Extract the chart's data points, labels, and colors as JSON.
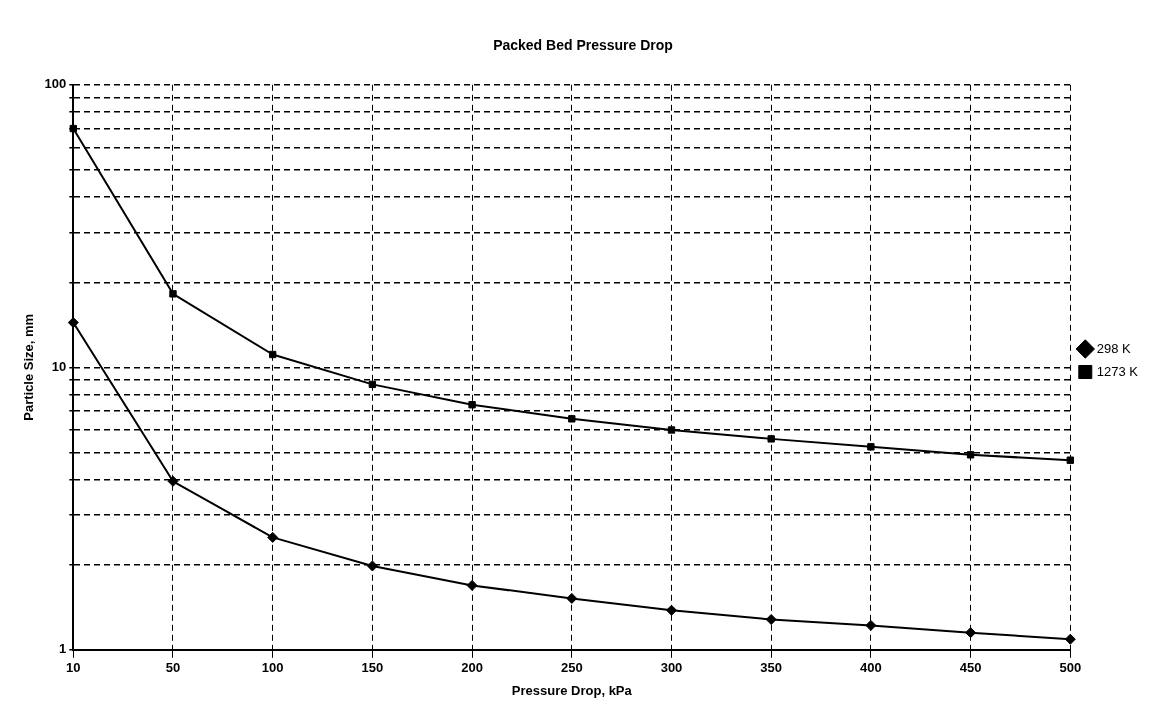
{
  "chart_data": {
    "type": "line",
    "title": "Packed Bed Pressure Drop",
    "xlabel": "Pressure Drop, kPa",
    "ylabel": "Particle Size, mm",
    "categories": [
      "10",
      "50",
      "100",
      "150",
      "200",
      "250",
      "300",
      "350",
      "400",
      "450",
      "500"
    ],
    "series": [
      {
        "name": "298 K",
        "color": "#000000",
        "marker": "diamond",
        "values": [
          14.4,
          3.95,
          2.5,
          1.98,
          1.69,
          1.52,
          1.38,
          1.28,
          1.22,
          1.15,
          1.09
        ]
      },
      {
        "name": "1273 K",
        "color": "#000000",
        "marker": "square",
        "values": [
          70,
          18.2,
          11.1,
          8.7,
          7.37,
          6.57,
          6.0,
          5.58,
          5.23,
          4.9,
          4.69
        ]
      }
    ],
    "log": "y",
    "ylim": [
      1,
      100
    ],
    "yticks": [
      1,
      {
        "value": 2,
        "label": null
      },
      {
        "value": 3,
        "label": null
      },
      {
        "value": 4,
        "label": null
      },
      {
        "value": 5,
        "label": null
      },
      {
        "value": 6,
        "label": null
      },
      {
        "value": 7,
        "label": null
      },
      {
        "value": 8,
        "label": null
      },
      {
        "value": 9,
        "label": null
      },
      10,
      {
        "value": 20,
        "label": null
      },
      {
        "value": 30,
        "label": null
      },
      {
        "value": 40,
        "label": null
      },
      {
        "value": 50,
        "label": null
      },
      {
        "value": 60,
        "label": null
      },
      {
        "value": 70,
        "label": null
      },
      {
        "value": 80,
        "label": null
      },
      {
        "value": 90,
        "label": null
      },
      100
    ],
    "grid": true,
    "legend": "right"
  }
}
